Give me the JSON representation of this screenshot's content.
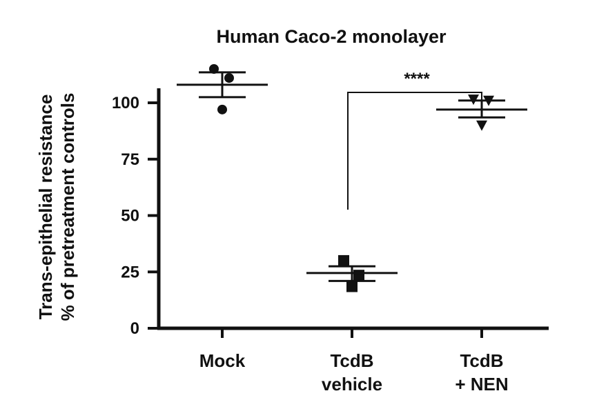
{
  "chart_data": {
    "type": "scatter",
    "title": "Human Caco-2 monolayer",
    "ylabel_lines": [
      "Trans-epithelial resistance",
      "% of pretreatment controls"
    ],
    "ylim": [
      0,
      115
    ],
    "yticks": [
      0,
      25,
      50,
      75,
      100
    ],
    "categories": [
      {
        "lines": [
          "Mock"
        ]
      },
      {
        "lines": [
          "TcdB",
          "vehicle"
        ]
      },
      {
        "lines": [
          "TcdB",
          "+ NEN"
        ]
      }
    ],
    "groups": [
      {
        "category_index": 0,
        "marker": "circle",
        "mean": 108,
        "sd_upper": 113.5,
        "sd_lower": 102.5,
        "points": [
          115,
          111,
          97
        ]
      },
      {
        "category_index": 1,
        "marker": "square",
        "mean": 24.5,
        "sd_upper": 27.5,
        "sd_lower": 21,
        "points": [
          30,
          23.5,
          18.5
        ]
      },
      {
        "category_index": 2,
        "marker": "triangle-down",
        "mean": 97,
        "sd_upper": 101,
        "sd_lower": 93.5,
        "points": [
          101.5,
          101,
          90
        ]
      }
    ],
    "comparisons": [
      {
        "from_index": 1,
        "to_index": 2,
        "label": "****"
      }
    ],
    "color": "#111111"
  }
}
